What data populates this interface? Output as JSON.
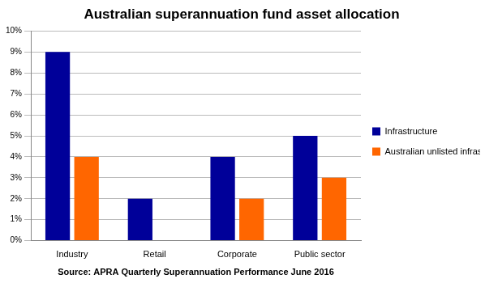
{
  "chart_data": {
    "type": "bar",
    "title": "Australian superannuation fund asset allocation",
    "xlabel": "Source: APRA Quarterly Superannuation Performance June 2016",
    "categories": [
      "Industry",
      "Retail",
      "Corporate",
      "Public sector"
    ],
    "series": [
      {
        "name": "Infrastructure",
        "color": "#000099",
        "values": [
          9,
          2,
          4,
          5
        ]
      },
      {
        "name": "Australian unlisted infrastructure",
        "color": "#FF6600",
        "values": [
          4,
          0,
          2,
          3
        ]
      }
    ],
    "ylim": [
      0,
      10
    ],
    "yticks": [
      {
        "value": 0,
        "label": "0%"
      },
      {
        "value": 1,
        "label": "1%"
      },
      {
        "value": 2,
        "label": "2%"
      },
      {
        "value": 3,
        "label": "3%"
      },
      {
        "value": 4,
        "label": "4%"
      },
      {
        "value": 5,
        "label": "5%"
      },
      {
        "value": 6,
        "label": "6%"
      },
      {
        "value": 7,
        "label": "7%"
      },
      {
        "value": 8,
        "label": "8%"
      },
      {
        "value": 9,
        "label": "9%"
      },
      {
        "value": 10,
        "label": "10%"
      }
    ],
    "grid": true,
    "legend": "right"
  }
}
